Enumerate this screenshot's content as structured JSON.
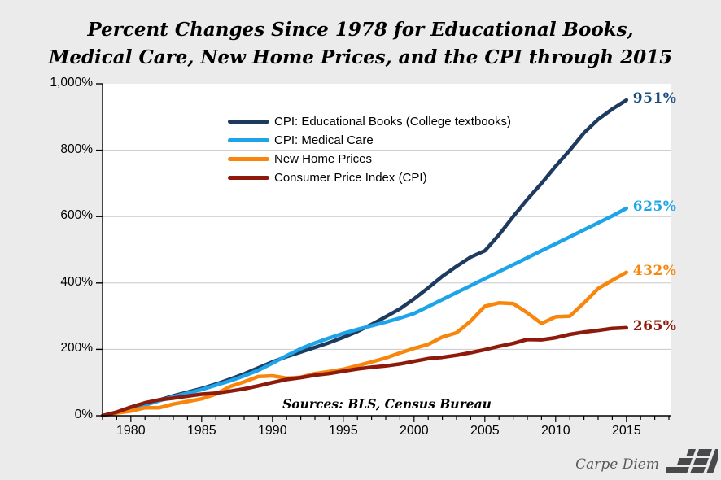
{
  "title": {
    "line1": "Percent Changes Since 1978 for Educational Books,",
    "line2": "Medical Care, New Home Prices, and the CPI through 2015"
  },
  "sources_note": "Sources: BLS, Census Bureau",
  "footer": {
    "brand": "Carpe Diem",
    "logo_text": "AEI"
  },
  "colors": {
    "background": "#ebebeb",
    "plot_background": "#ffffff",
    "gridline": "#c8c8c8",
    "axis": "#000000",
    "logo_gray": "#48494b"
  },
  "chart_data": {
    "type": "line",
    "title": "Percent Changes Since 1978 for Educational Books, Medical Care, New Home Prices, and the CPI through 2015",
    "grid": "horizontal",
    "legend_position": "inside-upper-left",
    "x": [
      1978,
      1979,
      1980,
      1981,
      1982,
      1983,
      1984,
      1985,
      1986,
      1987,
      1988,
      1989,
      1990,
      1991,
      1992,
      1993,
      1994,
      1995,
      1996,
      1997,
      1998,
      1999,
      2000,
      2001,
      2002,
      2003,
      2004,
      2005,
      2006,
      2007,
      2008,
      2009,
      2010,
      2011,
      2012,
      2013,
      2014,
      2015
    ],
    "x_axis": {
      "range": [
        1978,
        2018
      ],
      "label_years": [
        1980,
        1985,
        1990,
        1995,
        2000,
        2005,
        2010,
        2015
      ]
    },
    "y_axis": {
      "range": [
        0,
        1000
      ],
      "ticks": [
        0,
        200,
        400,
        600,
        800,
        1000
      ],
      "tick_labels": [
        "0%",
        "200%",
        "400%",
        "600%",
        "800%",
        "1,000%"
      ],
      "gridlines": [
        200,
        400,
        600,
        800
      ]
    },
    "series": [
      {
        "name": "CPI: Educational Books (College textbooks)",
        "color": "#1f3a5f",
        "end_label": "951%",
        "end_label_color": "#1b4a7e",
        "values": [
          0,
          9,
          21,
          34,
          47,
          60,
          71,
          82,
          95,
          110,
          126,
          144,
          162,
          178,
          192,
          206,
          220,
          236,
          254,
          275,
          298,
          322,
          352,
          385,
          420,
          450,
          478,
          497,
          545,
          600,
          652,
          700,
          752,
          800,
          852,
          893,
          924,
          951
        ]
      },
      {
        "name": "CPI: Medical Care",
        "color": "#1da4e8",
        "end_label": "625%",
        "end_label_color": "#1da4e8",
        "values": [
          0,
          10,
          20,
          32,
          45,
          57,
          68,
          79,
          92,
          105,
          120,
          137,
          158,
          181,
          202,
          219,
          234,
          248,
          260,
          271,
          282,
          294,
          308,
          329,
          350,
          371,
          392,
          413,
          434,
          455,
          476,
          497,
          518,
          539,
          560,
          581,
          602,
          625
        ]
      },
      {
        "name": "New Home Prices",
        "color": "#f8860d",
        "end_label": "432%",
        "end_label_color": "#f8860d",
        "values": [
          0,
          8,
          14,
          24,
          24,
          35,
          43,
          51,
          65,
          88,
          102,
          118,
          120,
          113,
          116,
          127,
          133,
          140,
          151,
          162,
          174,
          189,
          203,
          215,
          237,
          250,
          285,
          330,
          340,
          338,
          310,
          278,
          298,
          300,
          340,
          383,
          408,
          432
        ]
      },
      {
        "name": "Consumer Price Index (CPI)",
        "color": "#8e1a0b",
        "end_label": "265%",
        "end_label_color": "#8e1a0b",
        "values": [
          0,
          11,
          26,
          39,
          48,
          53,
          59,
          65,
          68,
          74,
          81,
          90,
          100,
          109,
          115,
          122,
          127,
          134,
          141,
          146,
          150,
          156,
          164,
          172,
          176,
          182,
          190,
          199,
          209,
          218,
          230,
          229,
          235,
          245,
          252,
          257,
          263,
          265
        ]
      }
    ]
  }
}
